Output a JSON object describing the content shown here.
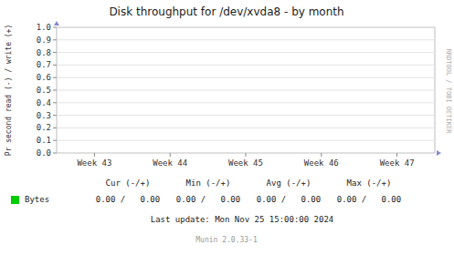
{
  "chart_data": {
    "type": "line",
    "title": "Disk throughput for /dev/xvda8 - by month",
    "y_label": "Pr second read (-) / write (+)",
    "categories": [
      "Week 43",
      "Week 44",
      "Week 45",
      "Week 46",
      "Week 47"
    ],
    "series": [
      {
        "name": "Bytes",
        "color": "#00CC00",
        "values": [
          null,
          null,
          null,
          null,
          null
        ]
      }
    ],
    "ylim": [
      0.0,
      1.0
    ],
    "yticks": [
      {
        "value": 0.0,
        "label": "0.0"
      },
      0.1,
      0.2,
      0.3,
      0.4,
      0.5,
      0.6,
      0.7,
      0.8,
      0.9,
      {
        "value": 1.0,
        "label": "1.0"
      }
    ],
    "grid": true,
    "annotations": [
      "Cur (-/+)",
      "Min (-/+)",
      "Avg (-/+)",
      "Max (-/+)",
      "0.00 /   0.00",
      "0.00 /   0.00",
      "0.00 /   0.00",
      "0.00 /   0.00",
      "Last update: Mon Nov 25 15:00:00 2024",
      "Munin 2.0.33-1",
      "RRDTOOL / TOBI OETIKER"
    ]
  }
}
